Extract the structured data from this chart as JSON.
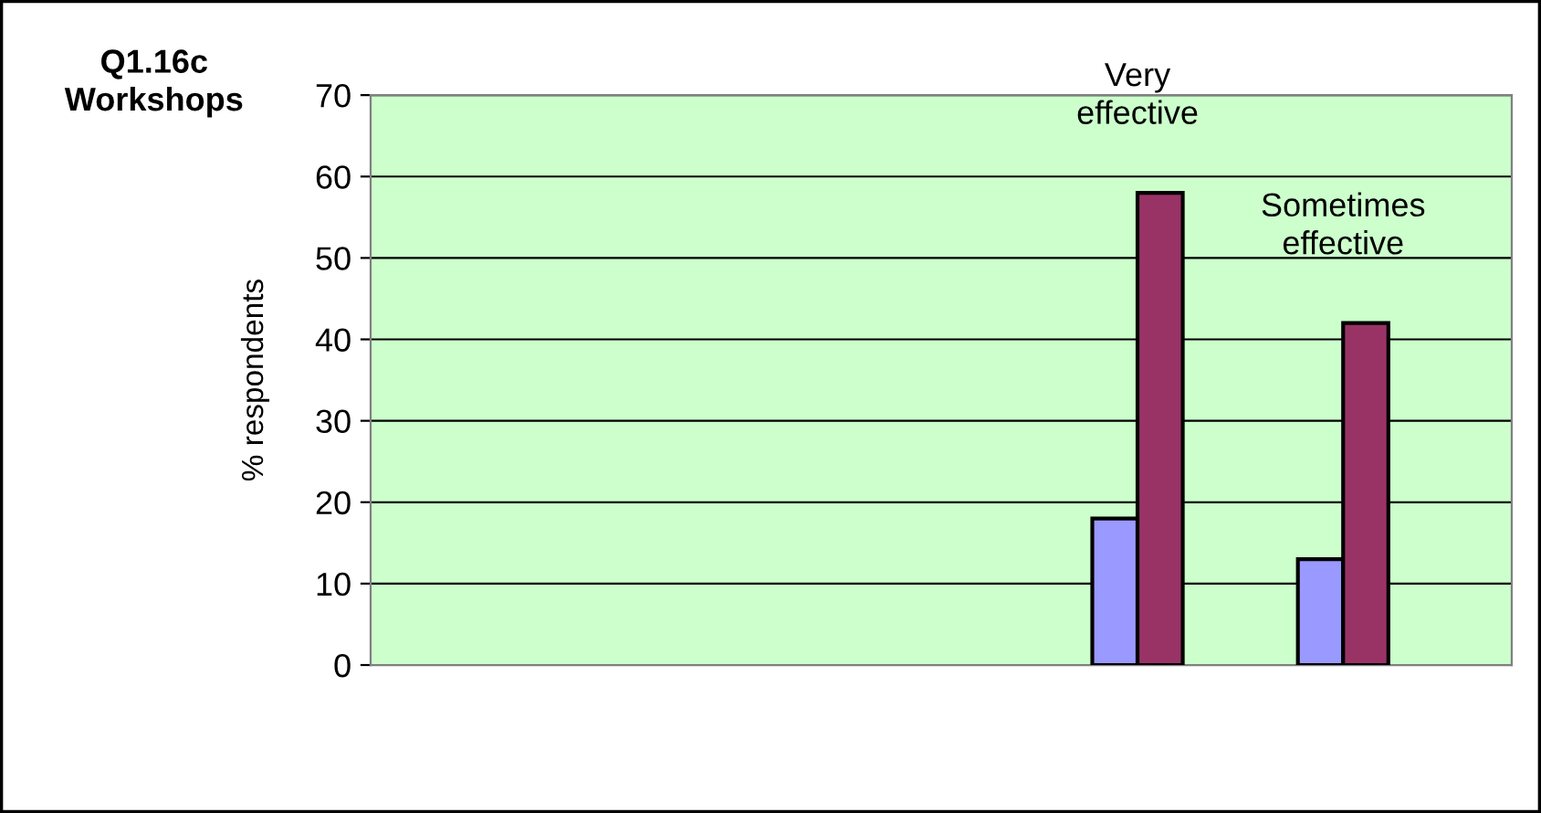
{
  "chart_data": {
    "type": "bar",
    "title": "Q1.16c Workshops",
    "ylabel": "% respondents",
    "categories": [
      null,
      null,
      null,
      "Very effective",
      "Sometimes effective"
    ],
    "series": [
      {
        "color": "#9999ff",
        "values": [
          null,
          null,
          null,
          18,
          13
        ]
      },
      {
        "color": "#993366",
        "values": [
          null,
          null,
          null,
          58,
          42
        ]
      }
    ],
    "ylim": [
      0,
      70
    ],
    "yticks": [
      0,
      10,
      20,
      30,
      40,
      50,
      60,
      70
    ],
    "grid": "y",
    "legend": false
  }
}
